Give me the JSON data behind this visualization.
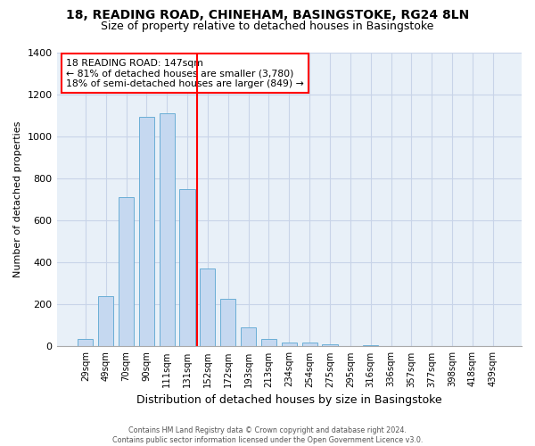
{
  "title": "18, READING ROAD, CHINEHAM, BASINGSTOKE, RG24 8LN",
  "subtitle": "Size of property relative to detached houses in Basingstoke",
  "xlabel": "Distribution of detached houses by size in Basingstoke",
  "ylabel": "Number of detached properties",
  "bar_labels": [
    "29sqm",
    "49sqm",
    "70sqm",
    "90sqm",
    "111sqm",
    "131sqm",
    "152sqm",
    "172sqm",
    "193sqm",
    "213sqm",
    "234sqm",
    "254sqm",
    "275sqm",
    "295sqm",
    "316sqm",
    "336sqm",
    "357sqm",
    "377sqm",
    "398sqm",
    "418sqm",
    "439sqm"
  ],
  "bar_values": [
    35,
    240,
    710,
    1095,
    1110,
    750,
    370,
    225,
    90,
    35,
    20,
    20,
    10,
    0,
    8,
    0,
    0,
    0,
    0,
    0,
    0
  ],
  "bar_color": "#c5d8f0",
  "bar_edge_color": "#6aaed6",
  "vline_x": 6,
  "vline_color": "red",
  "annotation_title": "18 READING ROAD: 147sqm",
  "annotation_line1": "← 81% of detached houses are smaller (3,780)",
  "annotation_line2": "18% of semi-detached houses are larger (849) →",
  "annotation_box_color": "#ffffff",
  "annotation_box_edge": "red",
  "ylim": [
    0,
    1400
  ],
  "yticks": [
    0,
    200,
    400,
    600,
    800,
    1000,
    1200,
    1400
  ],
  "background_color": "#e8f0f8",
  "footer1": "Contains HM Land Registry data © Crown copyright and database right 2024.",
  "footer2": "Contains public sector information licensed under the Open Government Licence v3.0.",
  "title_fontsize": 10,
  "subtitle_fontsize": 9
}
